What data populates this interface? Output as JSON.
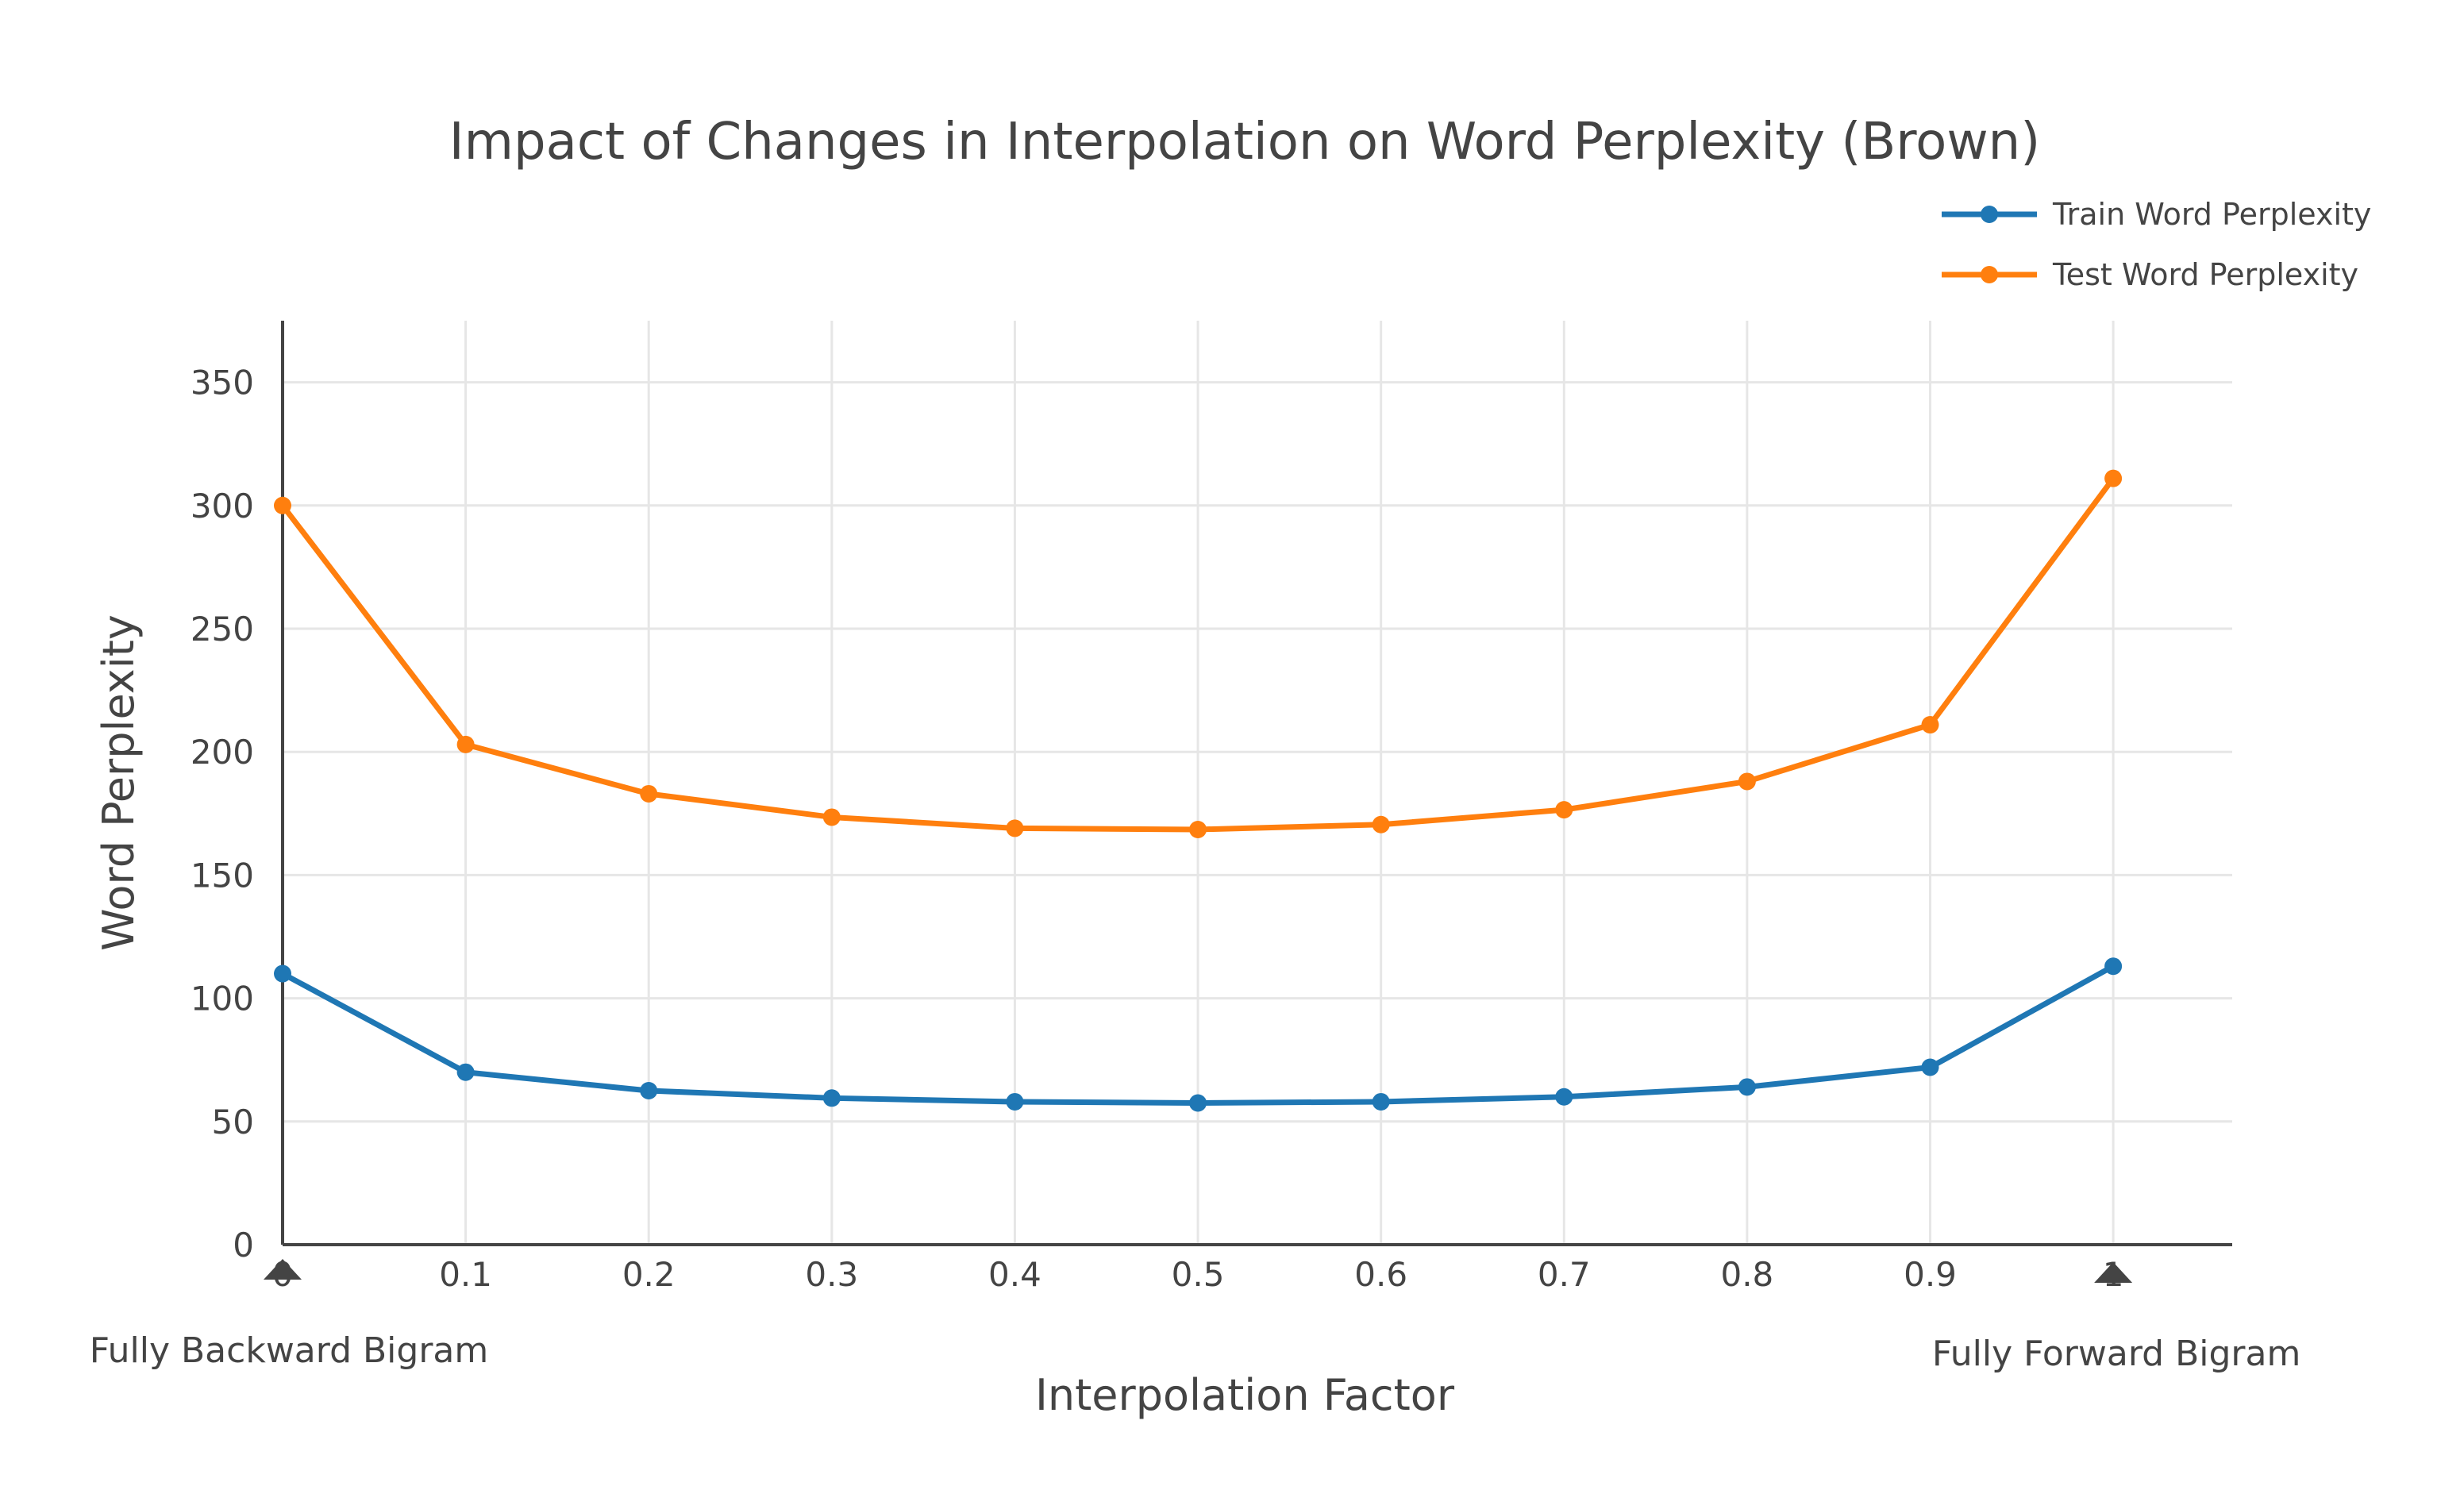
{
  "chart_data": {
    "type": "line",
    "title": "Impact of Changes in Interpolation on Word Perplexity (Brown)",
    "xlabel": "Interpolation Factor",
    "ylabel": "Word Perplexity",
    "x": [
      0,
      0.1,
      0.2,
      0.3,
      0.4,
      0.5,
      0.6,
      0.7,
      0.8,
      0.9,
      1
    ],
    "x_tick_labels": [
      "0",
      "0.1",
      "0.2",
      "0.3",
      "0.4",
      "0.5",
      "0.6",
      "0.7",
      "0.8",
      "0.9",
      "1"
    ],
    "y_ticks": [
      0,
      50,
      100,
      150,
      200,
      250,
      300,
      350
    ],
    "y_tick_labels": [
      "0",
      "50",
      "100",
      "150",
      "200",
      "250",
      "300",
      "350"
    ],
    "xlim": [
      0,
      1.065
    ],
    "ylim": [
      0,
      375
    ],
    "grid": true,
    "legend_position": "top-right",
    "series": [
      {
        "name": "Train Word Perplexity",
        "color": "#1f77b4",
        "values": [
          110,
          70,
          62.5,
          59.5,
          58,
          57.5,
          58,
          60,
          64,
          72,
          113
        ]
      },
      {
        "name": "Test Word Perplexity",
        "color": "#ff7f0e",
        "values": [
          300,
          203,
          183,
          173.5,
          169,
          168.5,
          170.5,
          176.5,
          188,
          211,
          311
        ]
      }
    ],
    "annotations": [
      {
        "x": 0,
        "text": "Fully Backward Bigram"
      },
      {
        "x": 1,
        "text": "Fully Forward Bigram"
      }
    ]
  }
}
